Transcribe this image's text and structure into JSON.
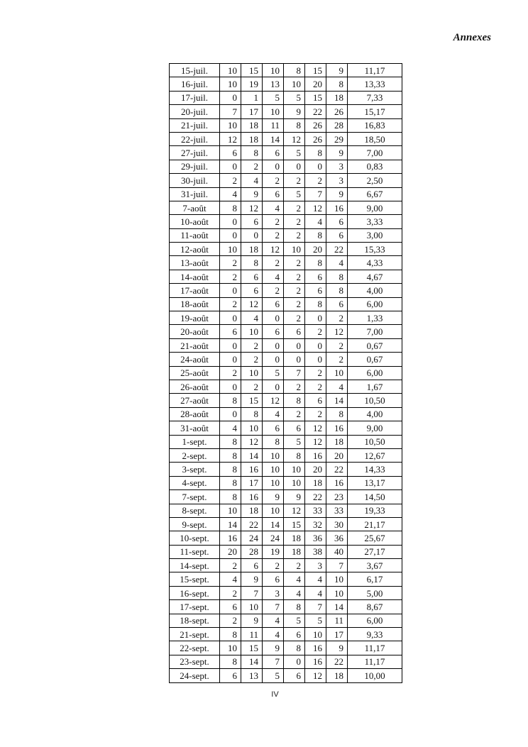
{
  "page": {
    "header": "Annexes",
    "page_number": "IV"
  },
  "table": {
    "rows": [
      {
        "date": "15-juil.",
        "values": [
          10,
          15,
          10,
          8,
          15,
          9
        ],
        "average": "11,17"
      },
      {
        "date": "16-juil.",
        "values": [
          10,
          19,
          13,
          10,
          20,
          8
        ],
        "average": "13,33"
      },
      {
        "date": "17-juil.",
        "values": [
          0,
          1,
          5,
          5,
          15,
          18
        ],
        "average": "7,33"
      },
      {
        "date": "20-juil.",
        "values": [
          7,
          17,
          10,
          9,
          22,
          26
        ],
        "average": "15,17"
      },
      {
        "date": "21-juil.",
        "values": [
          10,
          18,
          11,
          8,
          26,
          28
        ],
        "average": "16,83"
      },
      {
        "date": "22-juil.",
        "values": [
          12,
          18,
          14,
          12,
          26,
          29
        ],
        "average": "18,50"
      },
      {
        "date": "27-juil.",
        "values": [
          6,
          8,
          6,
          5,
          8,
          9
        ],
        "average": "7,00"
      },
      {
        "date": "29-juil.",
        "values": [
          0,
          2,
          0,
          0,
          0,
          3
        ],
        "average": "0,83"
      },
      {
        "date": "30-juil.",
        "values": [
          2,
          4,
          2,
          2,
          2,
          3
        ],
        "average": "2,50"
      },
      {
        "date": "31-juil.",
        "values": [
          4,
          9,
          6,
          5,
          7,
          9
        ],
        "average": "6,67"
      },
      {
        "date": "7-août",
        "values": [
          8,
          12,
          4,
          2,
          12,
          16
        ],
        "average": "9,00"
      },
      {
        "date": "10-août",
        "values": [
          0,
          6,
          2,
          2,
          4,
          6
        ],
        "average": "3,33"
      },
      {
        "date": "11-août",
        "values": [
          0,
          0,
          2,
          2,
          8,
          6
        ],
        "average": "3,00"
      },
      {
        "date": "12-août",
        "values": [
          10,
          18,
          12,
          10,
          20,
          22
        ],
        "average": "15,33"
      },
      {
        "date": "13-août",
        "values": [
          2,
          8,
          2,
          2,
          8,
          4
        ],
        "average": "4,33"
      },
      {
        "date": "14-août",
        "values": [
          2,
          6,
          4,
          2,
          6,
          8
        ],
        "average": "4,67"
      },
      {
        "date": "17-août",
        "values": [
          0,
          6,
          2,
          2,
          6,
          8
        ],
        "average": "4,00"
      },
      {
        "date": "18-août",
        "values": [
          2,
          12,
          6,
          2,
          8,
          6
        ],
        "average": "6,00"
      },
      {
        "date": "19-août",
        "values": [
          0,
          4,
          0,
          2,
          0,
          2
        ],
        "average": "1,33"
      },
      {
        "date": "20-août",
        "values": [
          6,
          10,
          6,
          6,
          2,
          12
        ],
        "average": "7,00"
      },
      {
        "date": "21-août",
        "values": [
          0,
          2,
          0,
          0,
          0,
          2
        ],
        "average": "0,67"
      },
      {
        "date": "24-août",
        "values": [
          0,
          2,
          0,
          0,
          0,
          2
        ],
        "average": "0,67"
      },
      {
        "date": "25-août",
        "values": [
          2,
          10,
          5,
          7,
          2,
          10
        ],
        "average": "6,00"
      },
      {
        "date": "26-août",
        "values": [
          0,
          2,
          0,
          2,
          2,
          4
        ],
        "average": "1,67"
      },
      {
        "date": "27-août",
        "values": [
          8,
          15,
          12,
          8,
          6,
          14
        ],
        "average": "10,50"
      },
      {
        "date": "28-août",
        "values": [
          0,
          8,
          4,
          2,
          2,
          8
        ],
        "average": "4,00"
      },
      {
        "date": "31-août",
        "values": [
          4,
          10,
          6,
          6,
          12,
          16
        ],
        "average": "9,00"
      },
      {
        "date": "1-sept.",
        "values": [
          8,
          12,
          8,
          5,
          12,
          18
        ],
        "average": "10,50"
      },
      {
        "date": "2-sept.",
        "values": [
          8,
          14,
          10,
          8,
          16,
          20
        ],
        "average": "12,67"
      },
      {
        "date": "3-sept.",
        "values": [
          8,
          16,
          10,
          10,
          20,
          22
        ],
        "average": "14,33"
      },
      {
        "date": "4-sept.",
        "values": [
          8,
          17,
          10,
          10,
          18,
          16
        ],
        "average": "13,17"
      },
      {
        "date": "7-sept.",
        "values": [
          8,
          16,
          9,
          9,
          22,
          23
        ],
        "average": "14,50"
      },
      {
        "date": "8-sept.",
        "values": [
          10,
          18,
          10,
          12,
          33,
          33
        ],
        "average": "19,33"
      },
      {
        "date": "9-sept.",
        "values": [
          14,
          22,
          14,
          15,
          32,
          30
        ],
        "average": "21,17"
      },
      {
        "date": "10-sept.",
        "values": [
          16,
          24,
          24,
          18,
          36,
          36
        ],
        "average": "25,67"
      },
      {
        "date": "11-sept.",
        "values": [
          20,
          28,
          19,
          18,
          38,
          40
        ],
        "average": "27,17"
      },
      {
        "date": "14-sept.",
        "values": [
          2,
          6,
          2,
          2,
          3,
          7
        ],
        "average": "3,67"
      },
      {
        "date": "15-sept.",
        "values": [
          4,
          9,
          6,
          4,
          4,
          10
        ],
        "average": "6,17"
      },
      {
        "date": "16-sept.",
        "values": [
          2,
          7,
          3,
          4,
          4,
          10
        ],
        "average": "5,00"
      },
      {
        "date": "17-sept.",
        "values": [
          6,
          10,
          7,
          8,
          7,
          14
        ],
        "average": "8,67"
      },
      {
        "date": "18-sept.",
        "values": [
          2,
          9,
          4,
          5,
          5,
          11
        ],
        "average": "6,00"
      },
      {
        "date": "21-sept.",
        "values": [
          8,
          11,
          4,
          6,
          10,
          17
        ],
        "average": "9,33"
      },
      {
        "date": "22-sept.",
        "values": [
          10,
          15,
          9,
          8,
          16,
          9
        ],
        "average": "11,17"
      },
      {
        "date": "23-sept.",
        "values": [
          8,
          14,
          7,
          0,
          16,
          22
        ],
        "average": "11,17"
      },
      {
        "date": "24-sept.",
        "values": [
          6,
          13,
          5,
          6,
          12,
          18
        ],
        "average": "10,00"
      }
    ]
  }
}
